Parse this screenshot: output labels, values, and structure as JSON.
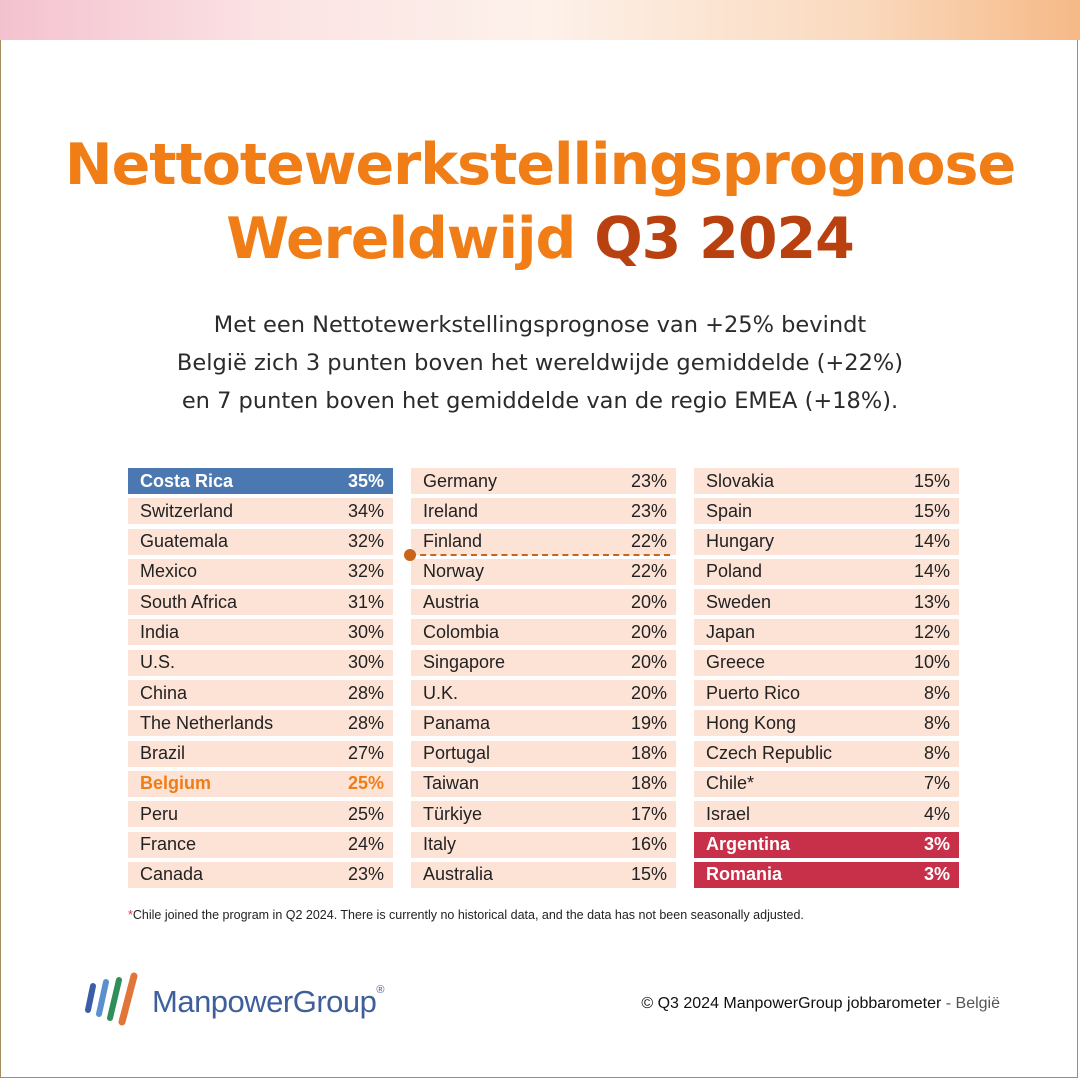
{
  "colors": {
    "title_orange": "#f07d16",
    "title_dark": "#b9410f",
    "row_bg": "#fde3d6",
    "highlight_blue": "#4b78b0",
    "highlight_orange": "#ee7d16",
    "highlight_red": "#c8304a",
    "brand_blue": "#3f5f9c"
  },
  "title": {
    "line1": "Nettotewerkstellingsprognose",
    "line2_prefix": "Wereldwijd",
    "line2_accent": "Q3 2024"
  },
  "subtitle": {
    "line1": "Met een Nettotewerkstellingsprognose van +25% bevindt",
    "line2": "België zich 3 punten boven het wereldwijde gemiddelde (+22%)",
    "line3": "en 7 punten boven het gemiddelde van de regio EMEA (+18%)."
  },
  "columns": [
    [
      {
        "country": "Costa Rica",
        "value": "35%",
        "style": "blue"
      },
      {
        "country": "Switzerland",
        "value": "34%"
      },
      {
        "country": "Guatemala",
        "value": "32%"
      },
      {
        "country": "Mexico",
        "value": "32%"
      },
      {
        "country": "South Africa",
        "value": "31%"
      },
      {
        "country": "India",
        "value": "30%"
      },
      {
        "country": "U.S.",
        "value": "30%"
      },
      {
        "country": "China",
        "value": "28%"
      },
      {
        "country": "The Netherlands",
        "value": "28%"
      },
      {
        "country": "Brazil",
        "value": "27%"
      },
      {
        "country": "Belgium",
        "value": "25%",
        "style": "orange"
      },
      {
        "country": "Peru",
        "value": "25%"
      },
      {
        "country": "France",
        "value": "24%"
      },
      {
        "country": "Canada",
        "value": "23%"
      }
    ],
    [
      {
        "country": "Germany",
        "value": "23%"
      },
      {
        "country": "Ireland",
        "value": "23%"
      },
      {
        "country": "Finland",
        "value": "22%"
      },
      {
        "country": "Norway",
        "value": "22%"
      },
      {
        "country": "Austria",
        "value": "20%"
      },
      {
        "country": "Colombia",
        "value": "20%"
      },
      {
        "country": "Singapore",
        "value": "20%"
      },
      {
        "country": "U.K.",
        "value": "20%"
      },
      {
        "country": "Panama",
        "value": "19%"
      },
      {
        "country": "Portugal",
        "value": "18%"
      },
      {
        "country": "Taiwan",
        "value": "18%"
      },
      {
        "country": "Türkiye",
        "value": "17%"
      },
      {
        "country": "Italy",
        "value": "16%"
      },
      {
        "country": "Australia",
        "value": "15%"
      }
    ],
    [
      {
        "country": "Slovakia",
        "value": "15%"
      },
      {
        "country": "Spain",
        "value": "15%"
      },
      {
        "country": "Hungary",
        "value": "14%"
      },
      {
        "country": "Poland",
        "value": "14%"
      },
      {
        "country": "Sweden",
        "value": "13%"
      },
      {
        "country": "Japan",
        "value": "12%"
      },
      {
        "country": "Greece",
        "value": "10%"
      },
      {
        "country": "Puerto Rico",
        "value": "8%"
      },
      {
        "country": "Hong Kong",
        "value": "8%"
      },
      {
        "country": "Czech Republic",
        "value": "8%"
      },
      {
        "country": "Chile*",
        "value": "7%"
      },
      {
        "country": "Israel",
        "value": "4%"
      },
      {
        "country": "Argentina",
        "value": "3%",
        "style": "red"
      },
      {
        "country": "Romania",
        "value": "3%",
        "style": "red"
      }
    ]
  ],
  "footnote": {
    "star": "*",
    "text": "Chile joined the program in Q2 2024. There is currently no historical data, and the data has not been seasonally adjusted."
  },
  "logo": {
    "name": "ManpowerGroup",
    "reg": "®"
  },
  "copyright": {
    "main": "© Q3 2024 ManpowerGroup jobbarometer",
    "suffix": " - België"
  }
}
